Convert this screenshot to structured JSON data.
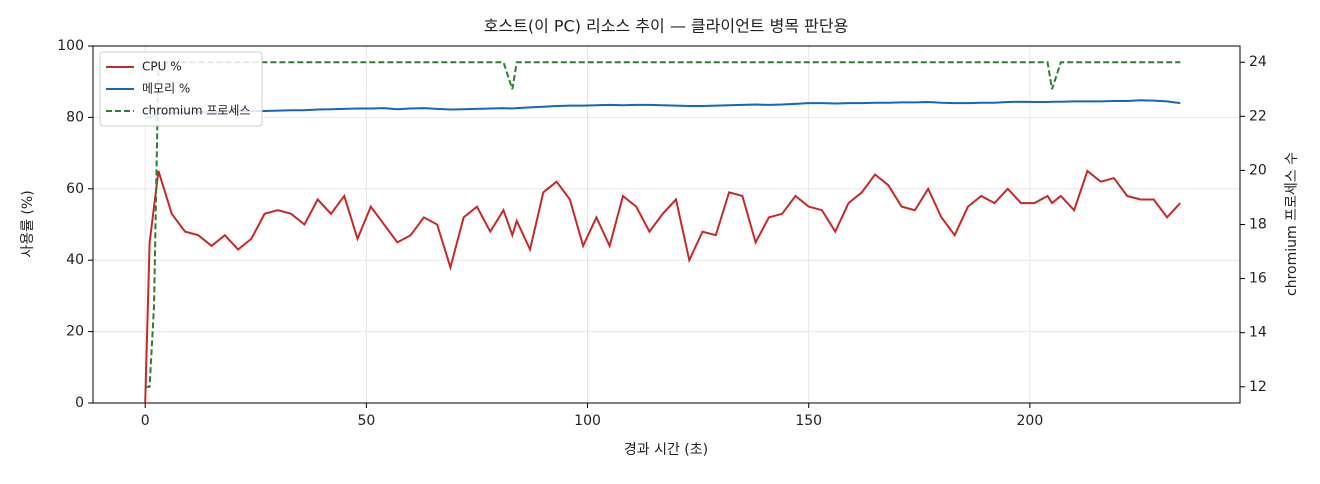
{
  "chart_data": {
    "type": "line",
    "title": "호스트(이 PC) 리소스 추이 — 클라이언트 병목 판단용",
    "x_label": "경과 시간 (초)",
    "y_label": "사용률 (%)",
    "y2_label": "chromium 프로세스 수",
    "x": [
      0,
      1,
      2,
      3,
      6,
      9,
      12,
      15,
      18,
      21,
      24,
      27,
      30,
      33,
      36,
      39,
      42,
      45,
      48,
      51,
      54,
      57,
      60,
      63,
      66,
      69,
      72,
      75,
      78,
      81,
      83,
      84,
      87,
      90,
      93,
      96,
      99,
      102,
      105,
      108,
      111,
      114,
      117,
      120,
      123,
      126,
      129,
      132,
      135,
      138,
      141,
      144,
      147,
      150,
      153,
      156,
      159,
      162,
      165,
      168,
      171,
      174,
      177,
      180,
      183,
      186,
      189,
      192,
      195,
      198,
      201,
      204,
      205,
      207,
      210,
      213,
      216,
      219,
      222,
      225,
      228,
      231,
      234
    ],
    "series": [
      {
        "name": "CPU %",
        "color": "#c62828",
        "linestyle": "solid",
        "values": [
          0,
          45,
          55,
          65,
          53,
          48,
          47,
          44,
          47,
          43,
          46,
          53,
          54,
          53,
          50,
          57,
          53,
          58,
          46,
          55,
          50,
          45,
          47,
          52,
          50,
          38,
          52,
          55,
          48,
          54,
          47,
          51,
          43,
          59,
          62,
          57,
          44,
          52,
          44,
          58,
          55,
          48,
          53,
          57,
          40,
          48,
          47,
          59,
          58,
          45,
          52,
          53,
          58,
          55,
          54,
          48,
          56,
          59,
          64,
          61,
          55,
          54,
          60,
          52,
          47,
          55,
          58,
          56,
          60,
          56,
          56,
          58,
          56,
          58,
          54,
          65,
          62,
          63,
          58,
          57,
          57,
          52,
          56
        ]
      },
      {
        "name": "메모리 %",
        "color": "#1565c0",
        "linestyle": "solid",
        "values": [
          80,
          80,
          80.5,
          81,
          81.2,
          81.3,
          81.5,
          81.6,
          81.7,
          81.7,
          81.8,
          81.8,
          81.9,
          82,
          82,
          82.2,
          82.3,
          82.4,
          82.5,
          82.5,
          82.6,
          82.3,
          82.5,
          82.6,
          82.4,
          82.2,
          82.3,
          82.4,
          82.5,
          82.6,
          82.5,
          82.6,
          82.8,
          83,
          83.2,
          83.3,
          83.3,
          83.4,
          83.5,
          83.4,
          83.5,
          83.5,
          83.4,
          83.3,
          83.2,
          83.2,
          83.3,
          83.4,
          83.5,
          83.6,
          83.5,
          83.6,
          83.8,
          84,
          84,
          83.9,
          84,
          84,
          84.1,
          84.1,
          84.2,
          84.2,
          84.3,
          84.1,
          84,
          84,
          84.1,
          84.1,
          84.3,
          84.4,
          84.3,
          84.3,
          84.4,
          84.4,
          84.5,
          84.5,
          84.5,
          84.6,
          84.6,
          84.8,
          84.7,
          84.5,
          84
        ]
      },
      {
        "name": "chromium 프로세스",
        "color": "#2e7d32",
        "linestyle": "dashed",
        "axis": "y2",
        "values": [
          12,
          12,
          15,
          24,
          24,
          24,
          24,
          24,
          24,
          24,
          24,
          24,
          24,
          24,
          24,
          24,
          24,
          24,
          24,
          24,
          24,
          24,
          24,
          24,
          24,
          24,
          24,
          24,
          24,
          24,
          23,
          24,
          24,
          24,
          24,
          24,
          24,
          24,
          24,
          24,
          24,
          24,
          24,
          24,
          24,
          24,
          24,
          24,
          24,
          24,
          24,
          24,
          24,
          24,
          24,
          24,
          24,
          24,
          24,
          24,
          24,
          24,
          24,
          24,
          24,
          24,
          24,
          24,
          24,
          24,
          24,
          24,
          23,
          24,
          24,
          24,
          24,
          24,
          24,
          24,
          24,
          24,
          24
        ]
      }
    ],
    "xlim": [
      -11.8,
      247.5
    ],
    "ylim": [
      0,
      100
    ],
    "y2lim": [
      11.4,
      24.6
    ],
    "xticks": [
      0,
      50,
      100,
      150,
      200
    ],
    "yticks": [
      0,
      20,
      40,
      60,
      80,
      100
    ],
    "y2ticks": [
      12,
      14,
      16,
      18,
      20,
      22,
      24
    ],
    "grid": true,
    "legend": "upper-left"
  }
}
